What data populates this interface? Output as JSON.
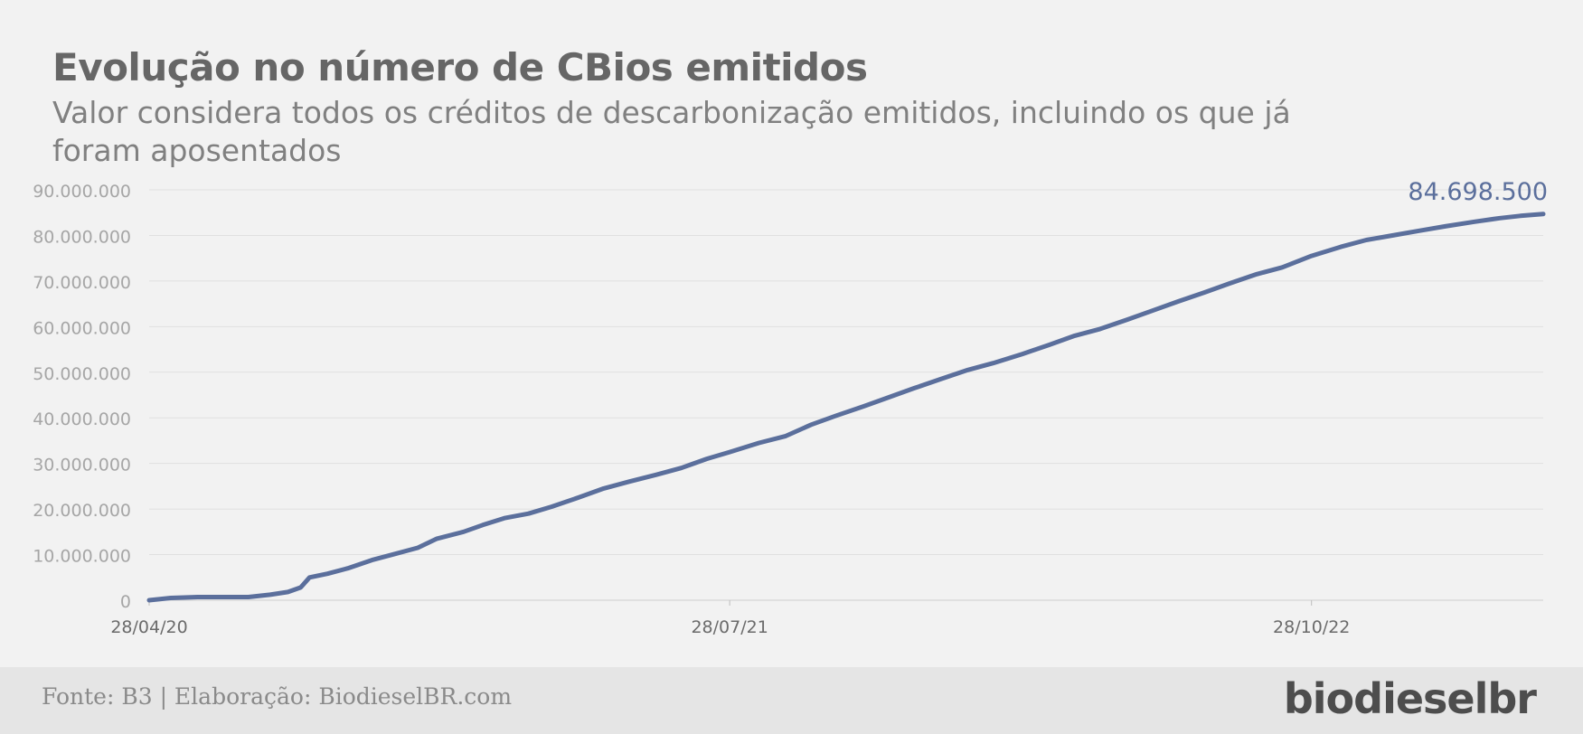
{
  "title": "Evolução no número de CBios emitidos",
  "subtitle": "Valor considera todos os créditos de descarbonização emitidos, incluindo os que já foram aposentados",
  "footer": {
    "source": "Fonte: B3 | Elaboração: BiodieselBR.com",
    "logo": "biodieselbr"
  },
  "colors": {
    "line": "#5b6f9c",
    "axis_text": "#a6a6a6",
    "grid": "#e0e0e0",
    "title": "#666666"
  },
  "chart_data": {
    "type": "line",
    "title": "Evolução no número de CBios emitidos",
    "xlabel": "",
    "ylabel": "",
    "ylim": [
      0,
      90000000
    ],
    "xlim": [
      "2020-04-28",
      "2023-04-28"
    ],
    "grid": true,
    "y_ticks": [
      0,
      10000000,
      20000000,
      30000000,
      40000000,
      50000000,
      60000000,
      70000000,
      80000000,
      90000000
    ],
    "y_tick_labels": [
      "0",
      "10.000.000",
      "20.000.000",
      "30.000.000",
      "40.000.000",
      "50.000.000",
      "60.000.000",
      "70.000.000",
      "80.000.000",
      "90.000.000"
    ],
    "x_ticks": [
      "2020-04-28",
      "2021-07-28",
      "2022-10-28"
    ],
    "x_tick_labels": [
      "28/04/20",
      "28/07/21",
      "28/10/22"
    ],
    "end_label": "84.698.500",
    "series": [
      {
        "x": [
          "2020-04-28",
          "2020-05-15",
          "2020-06-05",
          "2020-07-15",
          "2020-08-01",
          "2020-08-15",
          "2020-08-25",
          "2020-09-01",
          "2020-09-15",
          "2020-10-01",
          "2020-10-20",
          "2020-11-05",
          "2020-11-25",
          "2020-12-10",
          "2020-12-31",
          "2021-01-15",
          "2021-02-01",
          "2021-02-20",
          "2021-03-10",
          "2021-03-31",
          "2021-04-20",
          "2021-05-10",
          "2021-05-31",
          "2021-06-20",
          "2021-07-10",
          "2021-07-28",
          "2021-08-20",
          "2021-09-10",
          "2021-09-30",
          "2021-10-20",
          "2021-11-10",
          "2021-11-30",
          "2021-12-20",
          "2022-01-10",
          "2022-01-31",
          "2022-02-20",
          "2022-03-15",
          "2022-04-05",
          "2022-04-25",
          "2022-05-15",
          "2022-06-05",
          "2022-06-25",
          "2022-07-15",
          "2022-08-05",
          "2022-08-25",
          "2022-09-15",
          "2022-10-05",
          "2022-10-28",
          "2022-11-20",
          "2022-12-10",
          "2022-12-31",
          "2023-01-20",
          "2023-02-10",
          "2023-03-05",
          "2023-03-25",
          "2023-04-10",
          "2023-04-28"
        ],
        "y": [
          0,
          500000,
          700000,
          700000,
          1200000,
          1800000,
          2800000,
          5000000,
          5800000,
          7000000,
          8800000,
          10000000,
          11500000,
          13500000,
          15000000,
          16500000,
          18000000,
          19000000,
          20500000,
          22500000,
          24500000,
          26000000,
          27500000,
          29000000,
          31000000,
          32500000,
          34500000,
          36000000,
          38500000,
          40500000,
          42500000,
          44500000,
          46500000,
          48500000,
          50500000,
          52000000,
          54000000,
          56000000,
          58000000,
          59500000,
          61500000,
          63500000,
          65500000,
          67500000,
          69500000,
          71500000,
          73000000,
          75500000,
          77500000,
          79000000,
          80000000,
          81000000,
          82000000,
          83000000,
          83800000,
          84300000,
          84698500
        ]
      }
    ]
  }
}
